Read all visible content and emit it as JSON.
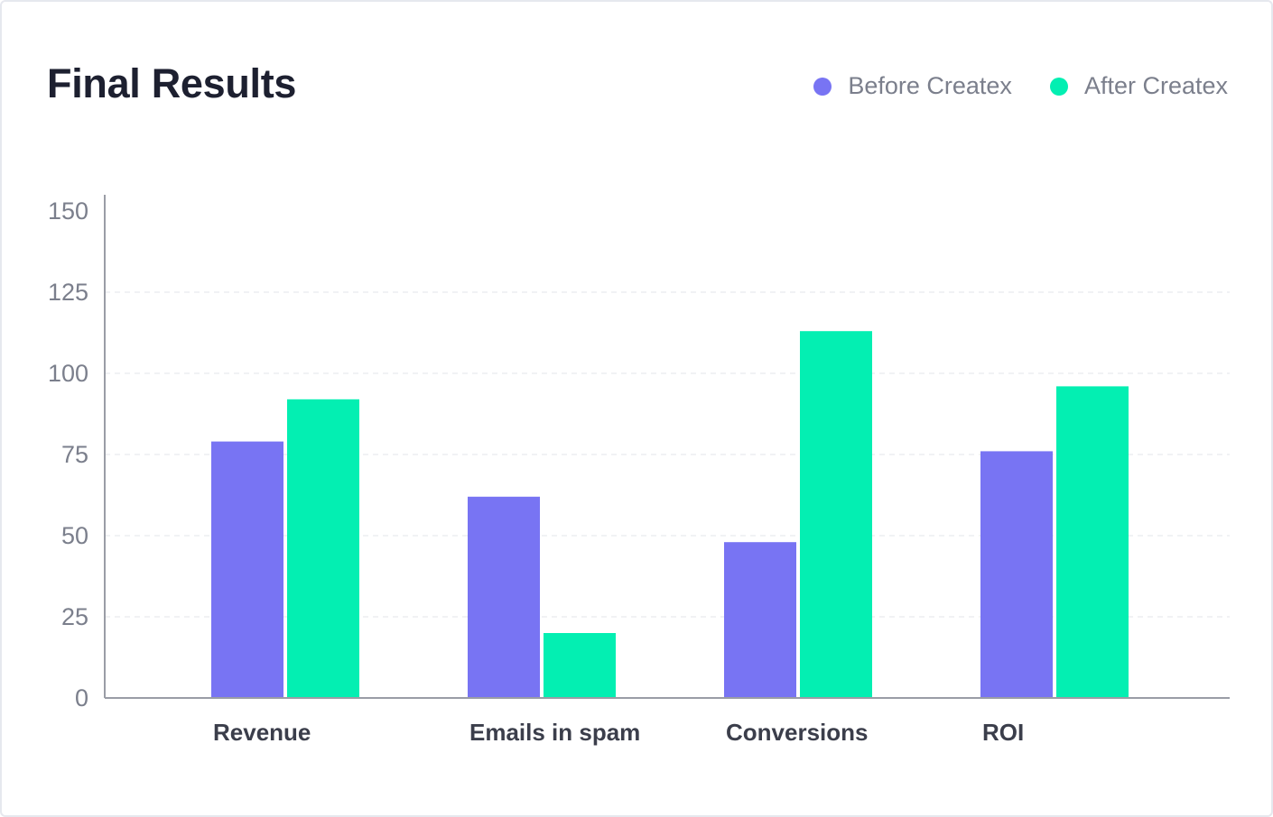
{
  "chart_data": {
    "type": "bar",
    "title": "Final Results",
    "categories": [
      "Revenue",
      "Emails in spam",
      "Conversions",
      "ROI"
    ],
    "series": [
      {
        "name": "Before Createx",
        "color": "#7874f3",
        "values": [
          79,
          62,
          48,
          76
        ]
      },
      {
        "name": "After Createx",
        "color": "#03efb2",
        "values": [
          92,
          20,
          113,
          96
        ]
      }
    ],
    "yticks": [
      "0",
      "25",
      "50",
      "75",
      "100",
      "125",
      "150"
    ],
    "ylim": [
      0,
      150
    ],
    "xlabel": "",
    "ylabel": "",
    "grid": true,
    "legend_position": "top-right"
  }
}
